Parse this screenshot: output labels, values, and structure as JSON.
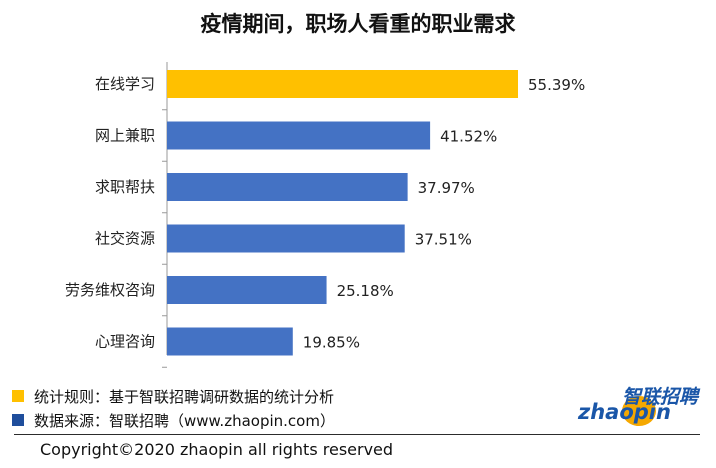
{
  "title": "疫情期间，职场人看重的职业需求",
  "chart_data": {
    "type": "bar",
    "orientation": "horizontal",
    "categories": [
      "在线学习",
      "网上兼职",
      "求职帮扶",
      "社交资源",
      "劳务维权咨询",
      "心理咨询"
    ],
    "values": [
      55.39,
      41.52,
      37.97,
      37.51,
      25.18,
      19.85
    ],
    "value_labels": [
      "55.39%",
      "41.52%",
      "37.97%",
      "37.51%",
      "25.18%",
      "19.85%"
    ],
    "unit": "%",
    "xlim": [
      0,
      55.39
    ],
    "grid": false,
    "highlight_index": 0,
    "colors": {
      "highlight": "#ffc000",
      "default": "#4472c4"
    }
  },
  "notes": [
    {
      "text": "统计规则：基于智联招聘调研数据的统计分析",
      "color": "#ffc000"
    },
    {
      "text": "数据来源：智联招聘（www.zhaopin.com）",
      "color": "#1f4e9c"
    }
  ],
  "copyright": "Copyright©2020 zhaopin all rights reserved",
  "logo": {
    "han": "智联招聘",
    "en": "zhaopin",
    "brand_color": "#1a56a8",
    "accent_color": "#f5a800"
  }
}
